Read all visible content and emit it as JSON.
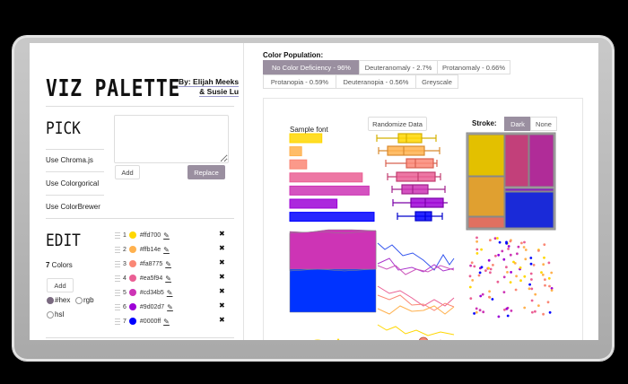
{
  "app": {
    "title": "VIZ PALETTE",
    "byline_1": "By: Elijah Meeks",
    "byline_2": "& Susie Lu"
  },
  "pick": {
    "heading": "PICK",
    "items": [
      "Use Chroma.js",
      "Use Colorgorical",
      "Use ColorBrewer"
    ],
    "textarea_value": "",
    "add_label": "Add",
    "replace_label": "Replace"
  },
  "edit": {
    "heading": "EDIT",
    "count": "7",
    "count_label": " Colors",
    "add_label": "Add",
    "formats": [
      {
        "label": "#hex",
        "selected": true
      },
      {
        "label": "rgb",
        "selected": false
      },
      {
        "label": "hsl",
        "selected": false
      }
    ],
    "colors": [
      {
        "index": "1",
        "hex": "#ffd700"
      },
      {
        "index": "2",
        "hex": "#ffb14e"
      },
      {
        "index": "3",
        "hex": "#fa8775"
      },
      {
        "index": "4",
        "hex": "#ea5f94"
      },
      {
        "index": "5",
        "hex": "#cd34b5"
      },
      {
        "index": "6",
        "hex": "#9d02d7"
      },
      {
        "index": "7",
        "hex": "#0000ff"
      }
    ],
    "edit_icon": "✎",
    "delete_icon": "✖"
  },
  "color_population": {
    "label": "Color Population:",
    "tabs": [
      {
        "label": "No Color Deficiency - 96%",
        "active": true
      },
      {
        "label": "Deuteranomaly - 2.7%",
        "active": false
      },
      {
        "label": "Protanomaly - 0.66%",
        "active": false
      },
      {
        "label": "Protanopia - 0.59%",
        "active": false
      },
      {
        "label": "Deuteranopia - 0.56%",
        "active": false
      },
      {
        "label": "Greyscale",
        "active": false
      }
    ]
  },
  "viz": {
    "sample_font": "Sample font",
    "randomize_label": "Randomize Data",
    "stroke_label": "Stroke:",
    "stroke_options": [
      {
        "label": "Dark",
        "active": true
      },
      {
        "label": "None",
        "active": false
      }
    ],
    "bar_widths": [
      38,
      14,
      20,
      86,
      94,
      56,
      100
    ]
  }
}
